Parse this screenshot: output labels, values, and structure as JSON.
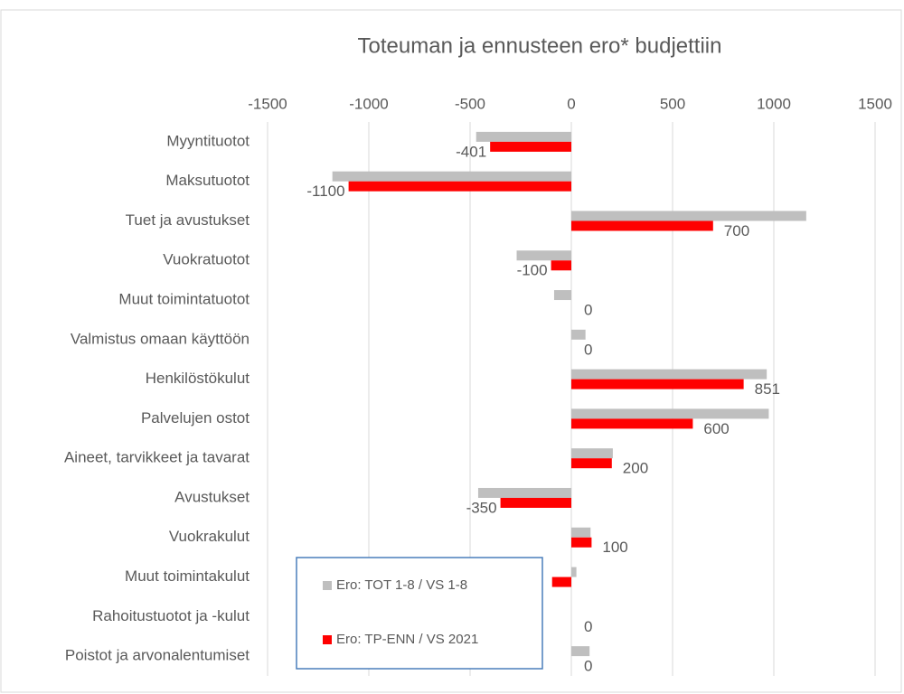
{
  "chart_data": {
    "type": "bar",
    "orientation": "horizontal",
    "title": "Toteuman ja ennusteen ero* budjettiin",
    "categories": [
      "Myyntituotot",
      "Maksutuotot",
      "Tuet ja avustukset",
      "Vuokratuotot",
      "Muut toimintatuotot",
      "Valmistus omaan käyttöön",
      "Henkilöstökulut",
      "Palvelujen ostot",
      "Aineet, tarvikkeet ja tavarat",
      "Avustukset",
      "Vuokrakulut",
      "Muut toimintakulut",
      "Rahoitustuotot ja -kulut",
      "Poistot ja arvonalentumiset"
    ],
    "series": [
      {
        "name": "Ero: TOT 1-8 / VS 1-8",
        "color": "#bfbfbf",
        "values": [
          -470,
          -1180,
          1160,
          -270,
          -85,
          70,
          965,
          975,
          205,
          -460,
          95,
          25,
          0,
          90
        ]
      },
      {
        "name": "Ero: TP-ENN / VS 2021",
        "color": "#ff0000",
        "values": [
          -401,
          -1100,
          700,
          -100,
          0,
          0,
          851,
          600,
          200,
          -350,
          100,
          -95,
          0,
          0
        ],
        "value_labels": [
          "-401",
          "-1100",
          "700",
          "-100",
          "0",
          "0",
          "851",
          "600",
          "200",
          "-350",
          "100",
          null,
          "0",
          "0"
        ]
      }
    ],
    "xlim": [
      -1500,
      1500
    ],
    "xticks": [
      -1500,
      -1000,
      -500,
      0,
      500,
      1000,
      1500
    ],
    "grid": true
  }
}
